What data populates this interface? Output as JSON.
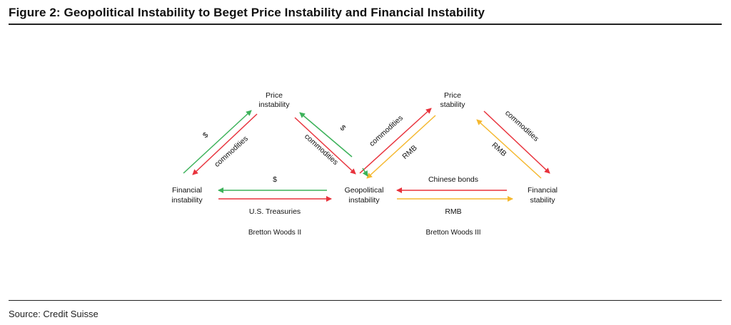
{
  "title": "Figure 2: Geopolitical Instability to Beget Price Instability and Financial Instability",
  "source": "Source: Credit Suisse",
  "nodes": {
    "price_instability": [
      "Price",
      "instability"
    ],
    "financial_instability": [
      "Financial",
      "instability"
    ],
    "geopolitical_instability": [
      "Geopolitical",
      "instability"
    ],
    "price_stability": [
      "Price",
      "stability"
    ],
    "financial_stability": [
      "Financial",
      "stability"
    ]
  },
  "labels": {
    "dollar_left": "$",
    "commodities_left": "commodities",
    "dollar_mid": "$",
    "commodities_mid": "commodities",
    "commodities_right": "commodities",
    "rmb_right_diag": "RMB",
    "commodities_far_right": "commodities",
    "rmb_far_right": "RMB",
    "dollar_bottom": "$",
    "us_treasuries": "U.S. Treasuries",
    "chinese_bonds": "Chinese bonds",
    "rmb_bottom": "RMB",
    "bretton_woods_2": "Bretton Woods II",
    "bretton_woods_3": "Bretton Woods III"
  },
  "colors": {
    "green": "#3cb25a",
    "red": "#e8323c",
    "yellow": "#f5b82e"
  }
}
